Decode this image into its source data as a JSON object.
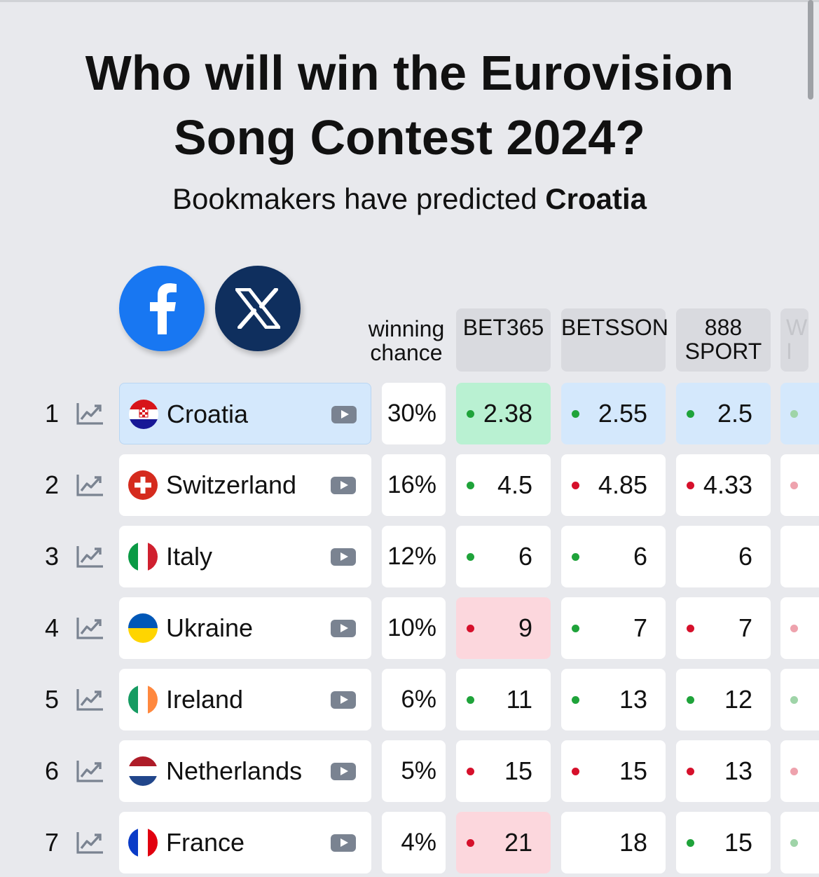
{
  "title_line1": "Who will win the Eurovision",
  "title_line2": "Song Contest 2024?",
  "subtitle_prefix": "Bookmakers have predicted ",
  "subtitle_country": "Croatia",
  "social": {
    "facebook": "facebook-icon",
    "x": "x-icon"
  },
  "columns": {
    "chance_line1": "winning",
    "chance_line2": "chance",
    "bookmakers": [
      {
        "line1": "BET365",
        "line2": ""
      },
      {
        "line1": "BETSSON",
        "line2": ""
      },
      {
        "line1": "888",
        "line2": "SPORT"
      },
      {
        "line1": "WI",
        "line2": "I"
      }
    ]
  },
  "colors": {
    "highlight_blue": "#d4e8fc",
    "highlight_green": "#b9f1d2",
    "highlight_red": "#fcd7dd",
    "trend_up": "#1fa33a",
    "trend_down": "#d6102b",
    "facebook": "#1877f2",
    "x": "#0f2f5e"
  },
  "rows": [
    {
      "rank": "1",
      "country": "Croatia",
      "flag": "croatia",
      "chance": "30%",
      "highlight": true,
      "odds": [
        {
          "value": "2.38",
          "trend": "up",
          "bg": "green"
        },
        {
          "value": "2.55",
          "trend": "up",
          "bg": "blue"
        },
        {
          "value": "2.5",
          "trend": "up",
          "bg": "blue"
        },
        {
          "value": "",
          "trend": "up",
          "bg": "blue"
        }
      ]
    },
    {
      "rank": "2",
      "country": "Switzerland",
      "flag": "switzerland",
      "chance": "16%",
      "odds": [
        {
          "value": "4.5",
          "trend": "up",
          "bg": "white"
        },
        {
          "value": "4.85",
          "trend": "down",
          "bg": "white"
        },
        {
          "value": "4.33",
          "trend": "down",
          "bg": "white"
        },
        {
          "value": "",
          "trend": "down",
          "bg": "white"
        }
      ]
    },
    {
      "rank": "3",
      "country": "Italy",
      "flag": "italy",
      "chance": "12%",
      "odds": [
        {
          "value": "6",
          "trend": "up",
          "bg": "white"
        },
        {
          "value": "6",
          "trend": "up",
          "bg": "white"
        },
        {
          "value": "6",
          "trend": "none",
          "bg": "white"
        },
        {
          "value": "",
          "trend": "none",
          "bg": "white"
        }
      ]
    },
    {
      "rank": "4",
      "country": "Ukraine",
      "flag": "ukraine",
      "chance": "10%",
      "odds": [
        {
          "value": "9",
          "trend": "down",
          "bg": "red"
        },
        {
          "value": "7",
          "trend": "up",
          "bg": "white"
        },
        {
          "value": "7",
          "trend": "down",
          "bg": "white"
        },
        {
          "value": "",
          "trend": "down",
          "bg": "white"
        }
      ]
    },
    {
      "rank": "5",
      "country": "Ireland",
      "flag": "ireland",
      "chance": "6%",
      "odds": [
        {
          "value": "11",
          "trend": "up",
          "bg": "white"
        },
        {
          "value": "13",
          "trend": "up",
          "bg": "white"
        },
        {
          "value": "12",
          "trend": "up",
          "bg": "white"
        },
        {
          "value": "",
          "trend": "up",
          "bg": "white"
        }
      ]
    },
    {
      "rank": "6",
      "country": "Netherlands",
      "flag": "netherlands",
      "chance": "5%",
      "odds": [
        {
          "value": "15",
          "trend": "down",
          "bg": "white"
        },
        {
          "value": "15",
          "trend": "down",
          "bg": "white"
        },
        {
          "value": "13",
          "trend": "down",
          "bg": "white"
        },
        {
          "value": "",
          "trend": "down",
          "bg": "white"
        }
      ]
    },
    {
      "rank": "7",
      "country": "France",
      "flag": "france",
      "chance": "4%",
      "odds": [
        {
          "value": "21",
          "trend": "down",
          "bg": "red"
        },
        {
          "value": "18",
          "trend": "none",
          "bg": "white"
        },
        {
          "value": "15",
          "trend": "up",
          "bg": "white"
        },
        {
          "value": "",
          "trend": "up",
          "bg": "white"
        }
      ]
    }
  ]
}
